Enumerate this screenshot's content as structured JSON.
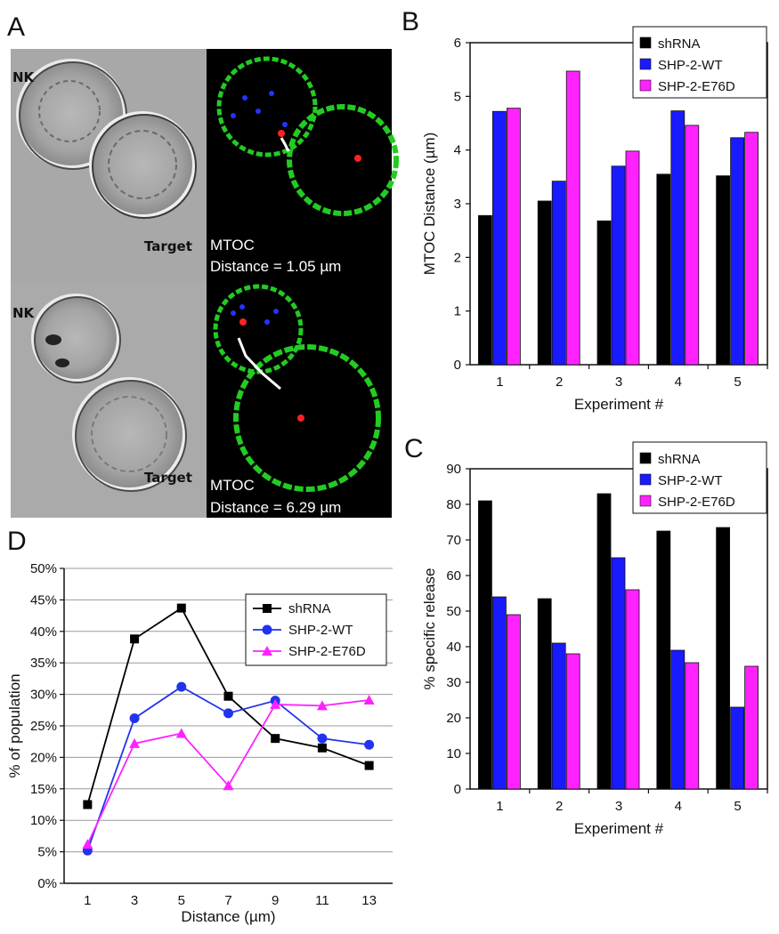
{
  "panel_letters": {
    "a": "A",
    "b": "B",
    "c": "C",
    "d": "D"
  },
  "micrographs": {
    "nk_label": "NK",
    "target_label": "Target",
    "top": {
      "mtoc": "MTOC",
      "distance": "Distance = 1.05 µm"
    },
    "bottom": {
      "mtoc": "MTOC",
      "distance": "Distance = 6.29 µm"
    }
  },
  "colors": {
    "shRNA": "#000000",
    "SHP-2-WT": "#1a1aff",
    "SHP-2-E76D": "#ff22ff",
    "line_wt": "#2233ee"
  },
  "chart_data": [
    {
      "id": "B",
      "type": "bar",
      "categories": [
        "1",
        "2",
        "3",
        "4",
        "5"
      ],
      "series": [
        {
          "name": "shRNA",
          "values": [
            2.78,
            3.05,
            2.68,
            3.55,
            3.52
          ]
        },
        {
          "name": "SHP-2-WT",
          "values": [
            4.72,
            3.42,
            3.7,
            4.73,
            4.23
          ]
        },
        {
          "name": "SHP-2-E76D",
          "values": [
            4.78,
            5.47,
            3.98,
            4.46,
            4.33
          ]
        }
      ],
      "xlabel": "Experiment #",
      "ylabel": "MTOC Distance (µm)",
      "ylim": [
        0,
        6
      ],
      "yticks": [
        "0",
        "1",
        "2",
        "3",
        "4",
        "5",
        "6"
      ],
      "legend": "top-right",
      "grid": false
    },
    {
      "id": "C",
      "type": "bar",
      "categories": [
        "1",
        "2",
        "3",
        "4",
        "5"
      ],
      "series": [
        {
          "name": "shRNA",
          "values": [
            81,
            53.5,
            83,
            72.5,
            73.5
          ]
        },
        {
          "name": "SHP-2-WT",
          "values": [
            54,
            41,
            65,
            39,
            23
          ]
        },
        {
          "name": "SHP-2-E76D",
          "values": [
            49,
            38,
            56,
            35.5,
            34.5
          ]
        }
      ],
      "xlabel": "Experiment #",
      "ylabel": "% specific release",
      "ylim": [
        0,
        90
      ],
      "yticks": [
        "0",
        "10",
        "20",
        "30",
        "40",
        "50",
        "60",
        "70",
        "80",
        "90"
      ],
      "legend": "top-right",
      "grid": false
    },
    {
      "id": "D",
      "type": "line",
      "x": [
        1,
        3,
        5,
        7,
        9,
        11,
        13
      ],
      "xticks": [
        "1",
        "3",
        "5",
        "7",
        "9",
        "11",
        "13"
      ],
      "series": [
        {
          "name": "shRNA",
          "values": [
            12.5,
            38.8,
            43.7,
            29.7,
            23.0,
            21.5,
            18.7
          ]
        },
        {
          "name": "SHP-2-WT",
          "values": [
            5.2,
            26.2,
            31.2,
            27.0,
            29.0,
            23.0,
            22.0
          ]
        },
        {
          "name": "SHP-2-E76D",
          "values": [
            6.2,
            22.2,
            23.8,
            15.5,
            28.4,
            28.2,
            29.1
          ]
        }
      ],
      "xlabel": "Distance (µm)",
      "ylabel": "% of population",
      "ylim": [
        0,
        50
      ],
      "yticks": [
        "0%",
        "5%",
        "10%",
        "15%",
        "20%",
        "25%",
        "30%",
        "35%",
        "40%",
        "45%",
        "50%"
      ],
      "legend": "top-right",
      "grid": true
    }
  ]
}
